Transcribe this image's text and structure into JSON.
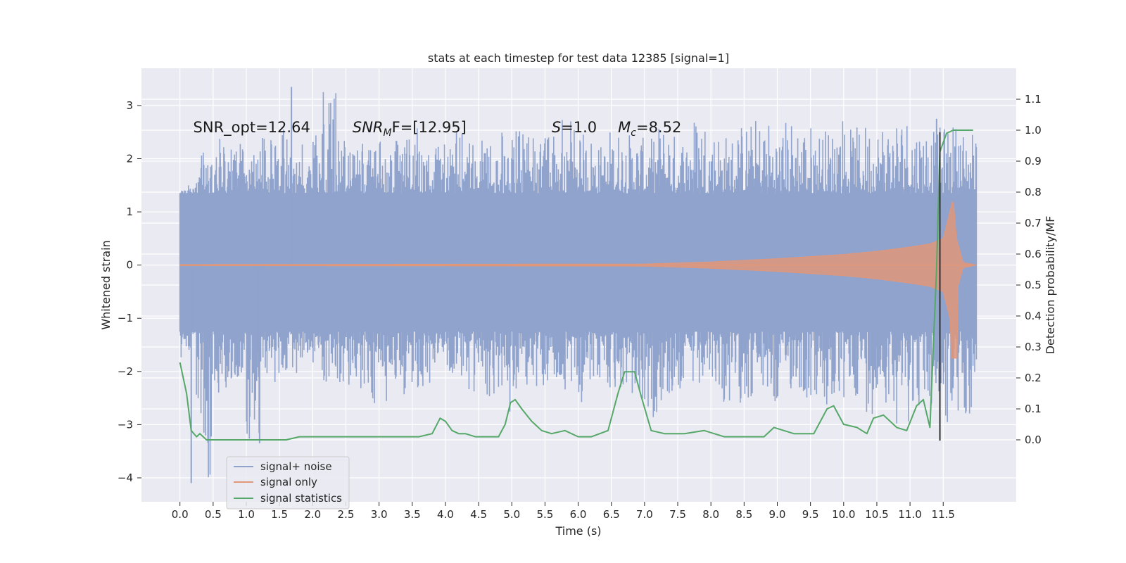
{
  "chart_data": {
    "type": "line",
    "title": "stats at each timestep for test data 12385 [signal=1]",
    "xlabel": "Time (s)",
    "ylabel": "Whitened strain",
    "ylabel_right": "Detection probability/MF",
    "xlim": [
      -0.58,
      12.6
    ],
    "ylim": [
      -4.45,
      3.7
    ],
    "ylim_right": [
      -0.2,
      1.2
    ],
    "x_ticks": [
      0.0,
      0.5,
      1.0,
      1.5,
      2.0,
      2.5,
      3.0,
      3.5,
      4.0,
      4.5,
      5.0,
      5.5,
      6.0,
      6.5,
      7.0,
      7.5,
      8.0,
      8.5,
      9.0,
      9.5,
      10.0,
      10.5,
      11.0,
      11.5
    ],
    "x_tick_labels": [
      "0.0",
      "0.5",
      "1.0",
      "1.5",
      "2.0",
      "2.5",
      "3.0",
      "3.5",
      "4.0",
      "4.5",
      "5.0",
      "5.5",
      "6.0",
      "6.5",
      "7.0",
      "7.5",
      "8.0",
      "8.5",
      "9.0",
      "9.5",
      "10.0",
      "10.5",
      "11.0",
      "11.5"
    ],
    "y_ticks": [
      -4,
      -3,
      -2,
      -1,
      0,
      1,
      2,
      3
    ],
    "y_tick_labels": [
      "−4",
      "−3",
      "−2",
      "−1",
      "0",
      "1",
      "2",
      "3"
    ],
    "y_right_ticks": [
      0.0,
      0.1,
      0.2,
      0.3,
      0.4,
      0.5,
      0.6,
      0.7,
      0.8,
      0.9,
      1.0,
      1.1
    ],
    "y_right_tick_labels": [
      "0.0",
      "0.1",
      "0.2",
      "0.3",
      "0.4",
      "0.5",
      "0.6",
      "0.7",
      "0.8",
      "0.9",
      "1.0",
      "1.1"
    ],
    "grid": true,
    "legend_position": "lower-left",
    "annotations": [
      {
        "kind": "plain",
        "text": "SNR_opt=12.64",
        "x": 0.2,
        "y": 2.6
      },
      {
        "kind": "sub",
        "base": "SNR",
        "sub": "M",
        "rest": "F=[12.95]",
        "x": 2.6,
        "y": 2.6
      },
      {
        "kind": "italic",
        "base": "S",
        "rest": "=1.0",
        "x": 5.6,
        "y": 2.6
      },
      {
        "kind": "sub",
        "base": "M",
        "sub": "c",
        "rest": "=8.52",
        "x": 6.6,
        "y": 2.6
      }
    ],
    "vline": {
      "x": 11.45,
      "y_range": [
        -3.3,
        2.5
      ],
      "color": "#333333"
    },
    "series": [
      {
        "name": "signal+ noise",
        "axis": "left",
        "kind": "noise-band",
        "color": "#8fa3cc",
        "x_range": [
          0.0,
          12.0
        ],
        "core_band": [
          -1.25,
          1.35
        ],
        "spike_max": [
          1.5,
          2.2,
          2.4,
          2.3,
          2.1,
          2.4,
          2.6,
          2.3,
          2.5,
          3.35,
          2.4,
          2.3,
          2.5,
          2.4,
          2.6,
          2.2,
          2.3,
          2.5,
          2.4,
          2.3,
          2.5,
          2.7,
          2.4,
          2.6,
          2.8,
          2.5,
          2.3,
          2.6,
          2.5,
          2.4,
          2.7,
          2.5,
          2.9,
          2.6,
          2.5,
          2.7,
          2.8,
          2.6,
          2.8,
          2.7,
          2.6,
          2.9,
          2.6,
          2.7,
          2.8,
          2.9,
          2.7,
          2.6,
          2.7,
          2.6
        ],
        "spike_min": [
          -1.8,
          -4.1,
          -2.6,
          -2.3,
          -3.35,
          -2.4,
          -2.2,
          -2.1,
          -2.0,
          -2.2,
          -2.3,
          -2.4,
          -2.6,
          -2.2,
          -2.5,
          -2.3,
          -2.1,
          -2.2,
          -2.4,
          -2.7,
          -2.8,
          -2.5,
          -2.3,
          -2.2,
          -2.4,
          -2.6,
          -2.3,
          -2.4,
          -2.7,
          -2.9,
          -2.6,
          -2.4,
          -2.5,
          -2.3,
          -2.8,
          -2.6,
          -2.5,
          -2.8,
          -2.4,
          -2.6,
          -2.9,
          -2.7,
          -2.5,
          -2.8,
          -2.6,
          -3.0,
          -2.7,
          -2.8,
          -3.1,
          -2.9
        ]
      },
      {
        "name": "signal only",
        "axis": "left",
        "kind": "chirp",
        "color": "#e0977a",
        "x_range": [
          0.0,
          12.0
        ],
        "x_envelope": [
          0.0,
          7.0,
          8.0,
          9.0,
          10.0,
          10.5,
          11.0,
          11.3,
          11.5,
          11.65,
          11.7,
          11.8,
          12.0
        ],
        "amplitude": [
          0.01,
          0.02,
          0.06,
          0.12,
          0.2,
          0.26,
          0.34,
          0.4,
          0.5,
          1.25,
          0.5,
          0.05,
          0.0
        ]
      },
      {
        "name": "signal statistics",
        "axis": "right",
        "kind": "line",
        "color": "#55a868",
        "x": [
          0.0,
          0.1,
          0.17,
          0.25,
          0.3,
          0.4,
          0.5,
          0.6,
          0.8,
          1.0,
          1.2,
          1.4,
          1.6,
          1.8,
          2.0,
          2.2,
          2.4,
          2.6,
          2.8,
          3.0,
          3.2,
          3.4,
          3.6,
          3.8,
          3.92,
          4.0,
          4.1,
          4.2,
          4.3,
          4.45,
          4.6,
          4.8,
          4.9,
          4.98,
          5.05,
          5.15,
          5.3,
          5.45,
          5.6,
          5.8,
          6.0,
          6.2,
          6.45,
          6.6,
          6.7,
          6.85,
          6.95,
          7.1,
          7.3,
          7.6,
          7.9,
          8.2,
          8.5,
          8.8,
          8.95,
          9.1,
          9.25,
          9.55,
          9.75,
          9.85,
          10.0,
          10.2,
          10.35,
          10.45,
          10.6,
          10.8,
          10.95,
          11.1,
          11.2,
          11.3,
          11.4,
          11.45,
          11.55,
          11.65,
          11.95
        ],
        "y": [
          0.25,
          0.15,
          0.03,
          0.01,
          0.02,
          0.0,
          0.0,
          0.0,
          0.0,
          0.0,
          0.0,
          0.0,
          0.0,
          0.01,
          0.01,
          0.01,
          0.01,
          0.01,
          0.01,
          0.01,
          0.01,
          0.01,
          0.01,
          0.02,
          0.07,
          0.06,
          0.03,
          0.02,
          0.02,
          0.01,
          0.01,
          0.01,
          0.05,
          0.12,
          0.13,
          0.1,
          0.06,
          0.03,
          0.02,
          0.03,
          0.01,
          0.01,
          0.03,
          0.15,
          0.22,
          0.22,
          0.14,
          0.03,
          0.02,
          0.02,
          0.03,
          0.01,
          0.01,
          0.01,
          0.04,
          0.03,
          0.02,
          0.02,
          0.1,
          0.11,
          0.05,
          0.04,
          0.02,
          0.07,
          0.08,
          0.04,
          0.03,
          0.11,
          0.13,
          0.04,
          0.55,
          0.93,
          0.99,
          1.0,
          1.0
        ]
      }
    ]
  }
}
